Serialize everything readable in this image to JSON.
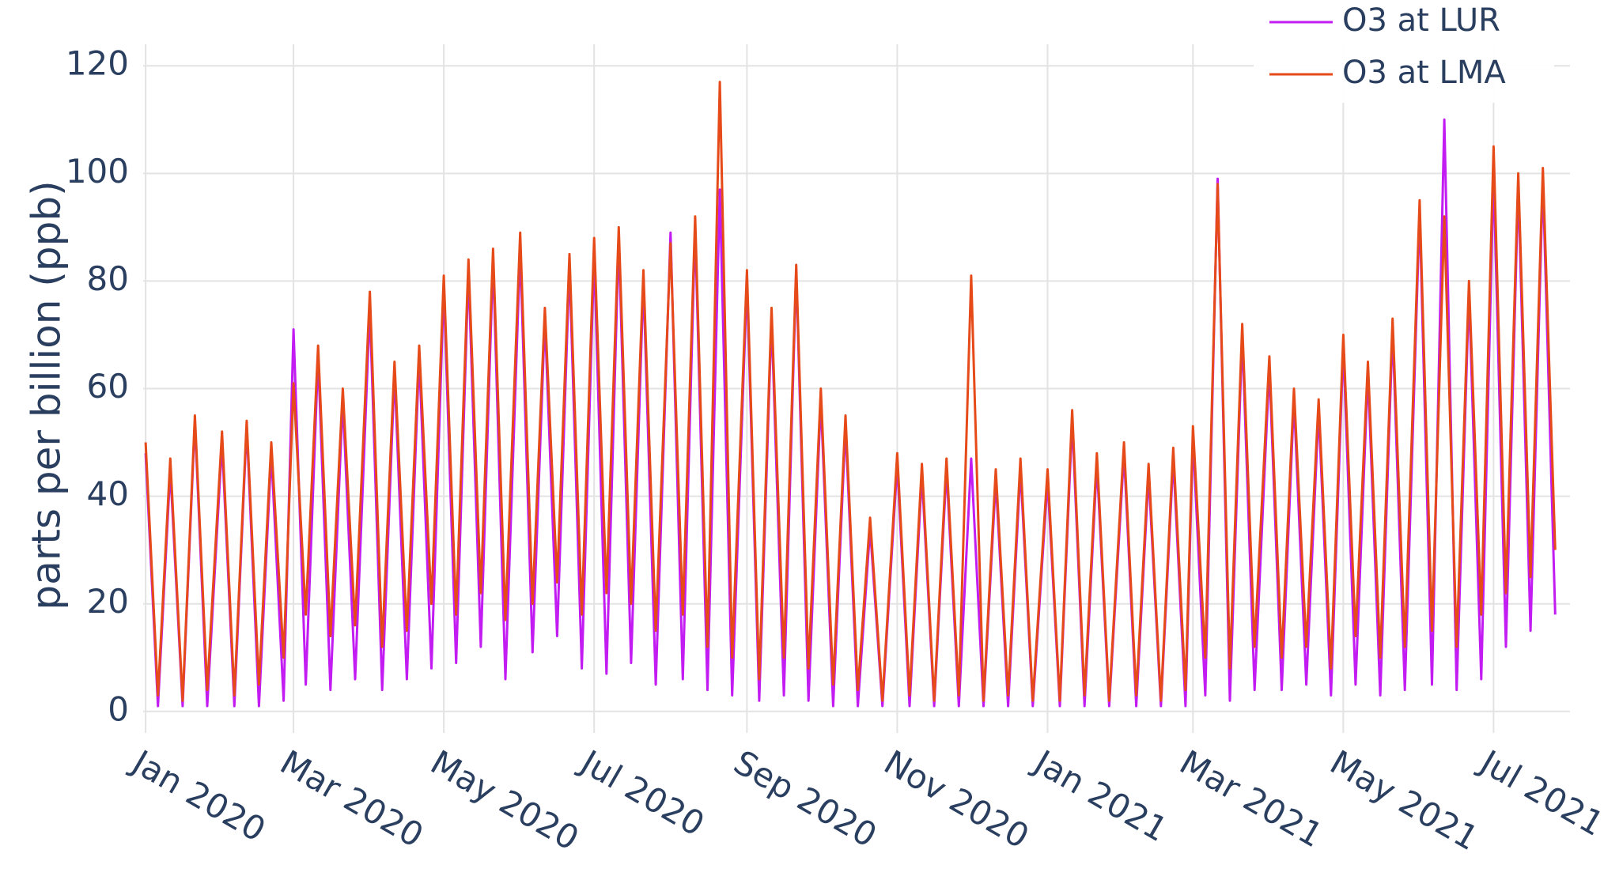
{
  "chart_data": {
    "type": "line",
    "ylabel": "parts per billion (ppb)",
    "x": [
      "2020-01-01",
      "2020-01-06",
      "2020-01-11",
      "2020-01-16",
      "2020-01-21",
      "2020-01-26",
      "2020-02-01",
      "2020-02-06",
      "2020-02-11",
      "2020-02-16",
      "2020-02-21",
      "2020-02-26",
      "2020-03-01",
      "2020-03-06",
      "2020-03-11",
      "2020-03-16",
      "2020-03-21",
      "2020-03-26",
      "2020-04-01",
      "2020-04-06",
      "2020-04-11",
      "2020-04-16",
      "2020-04-21",
      "2020-04-26",
      "2020-05-01",
      "2020-05-06",
      "2020-05-11",
      "2020-05-16",
      "2020-05-21",
      "2020-05-26",
      "2020-06-01",
      "2020-06-06",
      "2020-06-11",
      "2020-06-16",
      "2020-06-21",
      "2020-06-26",
      "2020-07-01",
      "2020-07-06",
      "2020-07-11",
      "2020-07-16",
      "2020-07-21",
      "2020-07-26",
      "2020-08-01",
      "2020-08-06",
      "2020-08-11",
      "2020-08-16",
      "2020-08-21",
      "2020-08-26",
      "2020-09-01",
      "2020-09-06",
      "2020-09-11",
      "2020-09-16",
      "2020-09-21",
      "2020-09-26",
      "2020-10-01",
      "2020-10-06",
      "2020-10-11",
      "2020-10-16",
      "2020-10-21",
      "2020-10-26",
      "2020-11-01",
      "2020-11-06",
      "2020-11-11",
      "2020-11-16",
      "2020-11-21",
      "2020-11-26",
      "2020-12-01",
      "2020-12-06",
      "2020-12-11",
      "2020-12-16",
      "2020-12-21",
      "2020-12-26",
      "2021-01-01",
      "2021-01-06",
      "2021-01-11",
      "2021-01-16",
      "2021-01-21",
      "2021-01-26",
      "2021-02-01",
      "2021-02-06",
      "2021-02-11",
      "2021-02-16",
      "2021-02-21",
      "2021-02-26",
      "2021-03-01",
      "2021-03-06",
      "2021-03-11",
      "2021-03-16",
      "2021-03-21",
      "2021-03-26",
      "2021-04-01",
      "2021-04-06",
      "2021-04-11",
      "2021-04-16",
      "2021-04-21",
      "2021-04-26",
      "2021-05-01",
      "2021-05-06",
      "2021-05-11",
      "2021-05-16",
      "2021-05-21",
      "2021-05-26",
      "2021-06-01",
      "2021-06-06",
      "2021-06-11",
      "2021-06-16",
      "2021-06-21",
      "2021-06-26",
      "2021-07-01",
      "2021-07-06",
      "2021-07-11",
      "2021-07-16",
      "2021-07-21",
      "2021-07-26"
    ],
    "series": [
      {
        "name": "O3 at LUR",
        "color": "#c21cf2",
        "values": [
          48,
          1,
          45,
          1,
          54,
          1,
          50,
          1,
          53,
          1,
          48,
          2,
          71,
          5,
          66,
          4,
          58,
          6,
          75,
          4,
          63,
          6,
          66,
          8,
          79,
          9,
          82,
          12,
          84,
          6,
          86,
          11,
          73,
          14,
          83,
          8,
          85,
          7,
          88,
          9,
          80,
          5,
          89,
          6,
          90,
          4,
          97,
          3,
          80,
          2,
          73,
          3,
          82,
          2,
          58,
          1,
          53,
          1,
          34,
          1,
          46,
          1,
          44,
          1,
          45,
          1,
          47,
          1,
          43,
          1,
          45,
          1,
          43,
          1,
          54,
          1,
          46,
          1,
          48,
          1,
          44,
          1,
          47,
          1,
          51,
          3,
          99,
          2,
          70,
          4,
          64,
          4,
          58,
          5,
          56,
          3,
          68,
          5,
          63,
          3,
          71,
          4,
          93,
          5,
          110,
          4,
          78,
          6,
          100,
          12,
          98,
          15,
          99,
          18
        ]
      },
      {
        "name": "O3 at LMA",
        "color": "#e64a19",
        "values": [
          50,
          3,
          47,
          2,
          55,
          4,
          52,
          3,
          54,
          5,
          50,
          10,
          61,
          18,
          68,
          14,
          60,
          16,
          78,
          12,
          65,
          15,
          68,
          20,
          81,
          18,
          84,
          22,
          86,
          17,
          89,
          20,
          75,
          24,
          85,
          18,
          88,
          22,
          90,
          20,
          82,
          15,
          87,
          18,
          92,
          12,
          117,
          10,
          82,
          6,
          75,
          10,
          83,
          8,
          60,
          5,
          55,
          4,
          36,
          2,
          48,
          3,
          46,
          2,
          47,
          3,
          81,
          2,
          45,
          3,
          47,
          2,
          45,
          2,
          56,
          3,
          48,
          2,
          50,
          3,
          46,
          2,
          49,
          4,
          53,
          10,
          98,
          8,
          72,
          12,
          66,
          10,
          60,
          12,
          58,
          8,
          70,
          14,
          65,
          10,
          73,
          12,
          95,
          15,
          92,
          12,
          80,
          18,
          105,
          22,
          100,
          25,
          101,
          30
        ]
      }
    ],
    "xlim": [
      "2019-12-31",
      "2021-08-01"
    ],
    "xticks": [
      {
        "value": "2020-01-01",
        "label": "Jan 2020"
      },
      {
        "value": "2020-03-01",
        "label": "Mar 2020"
      },
      {
        "value": "2020-05-01",
        "label": "May 2020"
      },
      {
        "value": "2020-07-01",
        "label": "Jul 2020"
      },
      {
        "value": "2020-09-01",
        "label": "Sep 2020"
      },
      {
        "value": "2020-11-01",
        "label": "Nov 2020"
      },
      {
        "value": "2021-01-01",
        "label": "Jan 2021"
      },
      {
        "value": "2021-03-01",
        "label": "Mar 2021"
      },
      {
        "value": "2021-05-01",
        "label": "May 2021"
      },
      {
        "value": "2021-07-01",
        "label": "Jul 2021"
      }
    ],
    "ylim": [
      -4,
      124
    ],
    "yticks": [
      0,
      20,
      40,
      60,
      80,
      100,
      120
    ],
    "grid": true,
    "legend": "top-right"
  }
}
